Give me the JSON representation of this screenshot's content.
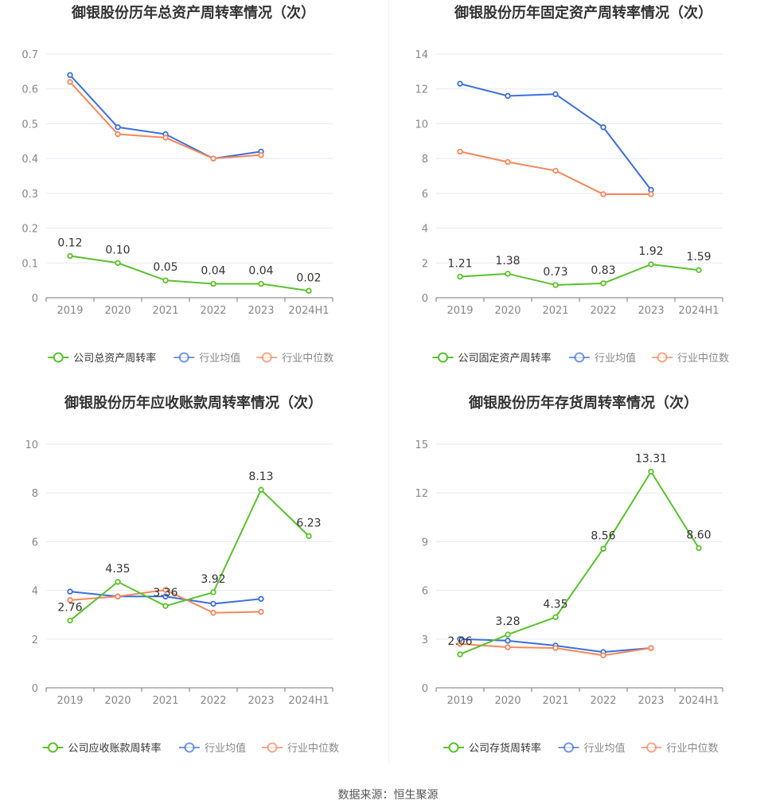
{
  "source_label": "数据来源：恒生聚源",
  "colors": {
    "company": "#5ac12d",
    "industry_avg": "#3d6fdb",
    "industry_median": "#f5875c",
    "axis_text": "#888888",
    "grid": "#e6e8f0"
  },
  "chart_data": [
    {
      "type": "line",
      "title": "御银股份历年总资产周转率情况（次）",
      "categories": [
        "2019",
        "2020",
        "2021",
        "2022",
        "2023",
        "2024H1"
      ],
      "yticks": [
        "0",
        "0.1",
        "0.2",
        "0.3",
        "0.4",
        "0.5",
        "0.6",
        "0.7"
      ],
      "ylim": [
        0,
        0.7
      ],
      "grid": true,
      "legend_position": "bottom",
      "series": [
        {
          "name": "公司总资产周转率",
          "role": "company",
          "values": [
            0.12,
            0.1,
            0.05,
            0.04,
            0.04,
            0.02
          ],
          "labels": [
            "0.12",
            "0.10",
            "0.05",
            "0.04",
            "0.04",
            "0.02"
          ]
        },
        {
          "name": "行业均值",
          "role": "industry_avg",
          "values": [
            0.64,
            0.49,
            0.47,
            0.4,
            0.42,
            null
          ]
        },
        {
          "name": "行业中位数",
          "role": "industry_median",
          "values": [
            0.62,
            0.47,
            0.46,
            0.4,
            0.41,
            null
          ]
        }
      ]
    },
    {
      "type": "line",
      "title": "御银股份历年固定资产周转率情况（次）",
      "categories": [
        "2019",
        "2020",
        "2021",
        "2022",
        "2023",
        "2024H1"
      ],
      "yticks": [
        "0",
        "2",
        "4",
        "6",
        "8",
        "10",
        "12",
        "14"
      ],
      "ylim": [
        0,
        14
      ],
      "grid": true,
      "legend_position": "bottom",
      "series": [
        {
          "name": "公司固定资产周转率",
          "role": "company",
          "values": [
            1.21,
            1.38,
            0.73,
            0.83,
            1.92,
            1.59
          ],
          "labels": [
            "1.21",
            "1.38",
            "0.73",
            "0.83",
            "1.92",
            "1.59"
          ]
        },
        {
          "name": "行业均值",
          "role": "industry_avg",
          "values": [
            12.3,
            11.6,
            11.7,
            9.8,
            6.2,
            null
          ]
        },
        {
          "name": "行业中位数",
          "role": "industry_median",
          "values": [
            8.4,
            7.8,
            7.3,
            5.95,
            5.95,
            null
          ]
        }
      ]
    },
    {
      "type": "line",
      "title": "御银股份历年应收账款周转率情况（次）",
      "categories": [
        "2019",
        "2020",
        "2021",
        "2022",
        "2023",
        "2024H1"
      ],
      "yticks": [
        "0",
        "2",
        "4",
        "6",
        "8",
        "10"
      ],
      "ylim": [
        0,
        10
      ],
      "grid": true,
      "legend_position": "bottom",
      "series": [
        {
          "name": "公司应收账款周转率",
          "role": "company",
          "values": [
            2.76,
            4.35,
            3.36,
            3.92,
            8.13,
            6.23
          ],
          "labels": [
            "2.76",
            "4.35",
            "3.36",
            "3.92",
            "8.13",
            "6.23"
          ]
        },
        {
          "name": "行业均值",
          "role": "industry_avg",
          "values": [
            3.95,
            3.75,
            3.75,
            3.45,
            3.65,
            null
          ]
        },
        {
          "name": "行业中位数",
          "role": "industry_median",
          "values": [
            3.6,
            3.75,
            4.02,
            3.08,
            3.12,
            null
          ]
        }
      ]
    },
    {
      "type": "line",
      "title": "御银股份历年存货周转率情况（次）",
      "categories": [
        "2019",
        "2020",
        "2021",
        "2022",
        "2023",
        "2024H1"
      ],
      "yticks": [
        "0",
        "3",
        "6",
        "9",
        "12",
        "15"
      ],
      "ylim": [
        0,
        15
      ],
      "grid": true,
      "legend_position": "bottom",
      "series": [
        {
          "name": "公司存货周转率",
          "role": "company",
          "values": [
            2.06,
            3.28,
            4.35,
            8.56,
            13.31,
            8.6
          ],
          "labels": [
            "2.06",
            "3.28",
            "4.35",
            "8.56",
            "13.31",
            "8.60"
          ]
        },
        {
          "name": "行业均值",
          "role": "industry_avg",
          "values": [
            3.0,
            2.9,
            2.6,
            2.2,
            2.45,
            null
          ]
        },
        {
          "name": "行业中位数",
          "role": "industry_median",
          "values": [
            2.7,
            2.5,
            2.45,
            2.0,
            2.45,
            null
          ]
        }
      ]
    }
  ]
}
